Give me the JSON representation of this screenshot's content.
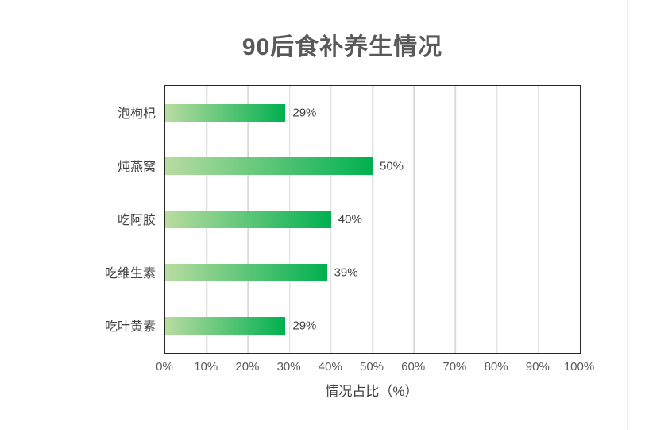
{
  "chart_data": {
    "type": "bar",
    "orientation": "horizontal",
    "title": "90后食补养生情况",
    "categories": [
      "泡枸杞",
      "炖燕窝",
      "吃阿胶",
      "吃维生素",
      "吃叶黄素"
    ],
    "values": [
      29,
      50,
      40,
      39,
      29
    ],
    "data_labels": [
      "29%",
      "50%",
      "40%",
      "39%",
      "29%"
    ],
    "xlabel": "情况占比（%）",
    "ylabel": "",
    "xlim": [
      0,
      100
    ],
    "x_tick_step": 10,
    "x_ticks": [
      "0%",
      "10%",
      "20%",
      "30%",
      "40%",
      "50%",
      "60%",
      "70%",
      "80%",
      "90%",
      "100%"
    ],
    "grid": true,
    "legend": false,
    "colors": {
      "bar_gradient_start": "#b9dca0",
      "bar_gradient_end": "#00b050",
      "gridline": "#d9d9d9",
      "plot_border": "#262626",
      "title_text": "#595959",
      "label_text": "#404040",
      "tick_text": "#595959",
      "background": "#ffffff"
    }
  }
}
